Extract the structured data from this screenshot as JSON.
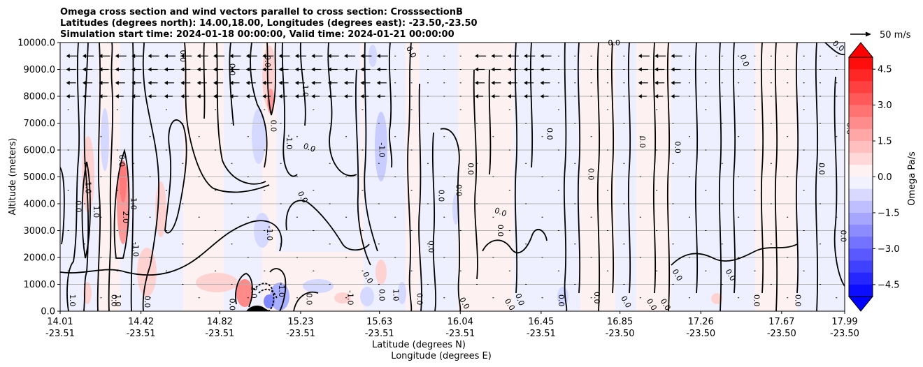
{
  "chart_data": {
    "type": "heatmap",
    "title_lines": [
      "Omega cross section and wind vectors parallel to cross section: CrosssectionB",
      "Latitudes (degrees north): 14.00,18.00, Longitudes (degrees east): -23.50,-23.50",
      "Simulation start time: 2024-01-18 00:00:00, Valid time: 2024-01-21 00:00:00"
    ],
    "ylabel": "Altitude (meters)",
    "xlabel_lines": [
      "Latitude (degrees N)",
      "Longitude (degrees E)"
    ],
    "ylim": [
      0,
      10000
    ],
    "y_ticks": [
      "0.0",
      "1000.0",
      "2000.0",
      "3000.0",
      "4000.0",
      "5000.0",
      "6000.0",
      "7000.0",
      "8000.0",
      "9000.0",
      "10000.0"
    ],
    "x_ticks": [
      {
        "lat": "14.01",
        "lon": "-23.51"
      },
      {
        "lat": "14.42",
        "lon": "-23.51"
      },
      {
        "lat": "14.82",
        "lon": "-23.51"
      },
      {
        "lat": "15.23",
        "lon": "-23.51"
      },
      {
        "lat": "15.63",
        "lon": "-23.51"
      },
      {
        "lat": "16.04",
        "lon": "-23.51"
      },
      {
        "lat": "16.45",
        "lon": "-23.51"
      },
      {
        "lat": "16.85",
        "lon": "-23.50"
      },
      {
        "lat": "17.26",
        "lon": "-23.50"
      },
      {
        "lat": "17.67",
        "lon": "-23.50"
      },
      {
        "lat": "17.99",
        "lon": "-23.50"
      }
    ],
    "grid": "horizontal",
    "colorbar": {
      "label": "Omega Pa/s",
      "range": [
        -5,
        5
      ],
      "ticks": [
        "4.5",
        "3.0",
        "1.5",
        "0.0",
        "−1.5",
        "−3.0",
        "−4.5"
      ],
      "extend": "both",
      "colors": {
        "positive_max": "#ff0000",
        "zero": "#ffffff",
        "negative_max": "#0000ff"
      }
    },
    "quiver_key": "50 m/s",
    "contour_labels": [
      {
        "text": "0.0",
        "lat": 14.62,
        "z": 9500,
        "rot": 90
      },
      {
        "text": "0.0",
        "lat": 14.87,
        "z": 9000,
        "rot": 90
      },
      {
        "text": "0.0",
        "lat": 15.05,
        "z": 9300,
        "rot": 90
      },
      {
        "text": "1.0",
        "lat": 15.24,
        "z": 8200,
        "rot": 90
      },
      {
        "text": "0.0",
        "lat": 15.08,
        "z": 6900,
        "rot": 90
      },
      {
        "text": "-1.0",
        "lat": 15.16,
        "z": 6300,
        "rot": 90
      },
      {
        "text": "0.0",
        "lat": 15.27,
        "z": 6000,
        "rot": 20
      },
      {
        "text": "0.0",
        "lat": 15.23,
        "z": 4200,
        "rot": 60
      },
      {
        "text": "-1.0",
        "lat": 15.06,
        "z": 2900,
        "rot": 90
      },
      {
        "text": "-1.0",
        "lat": 15.63,
        "z": 6000,
        "rot": 90
      },
      {
        "text": "0.0",
        "lat": 14.31,
        "z": 5600,
        "rot": 90
      },
      {
        "text": "1.0",
        "lat": 14.14,
        "z": 4600,
        "rot": 90
      },
      {
        "text": "0.0",
        "lat": 14.09,
        "z": 3900,
        "rot": 90
      },
      {
        "text": "1.0",
        "lat": 14.18,
        "z": 3700,
        "rot": 90
      },
      {
        "text": "2.0",
        "lat": 14.33,
        "z": 3500,
        "rot": 90
      },
      {
        "text": "1.0",
        "lat": 14.37,
        "z": 4000,
        "rot": 90
      },
      {
        "text": "-1.0",
        "lat": 14.38,
        "z": 2300,
        "rot": 90
      },
      {
        "text": "0.0",
        "lat": 15.78,
        "z": 9600,
        "rot": 60
      },
      {
        "text": "0.0",
        "lat": 15.93,
        "z": 4300,
        "rot": 90
      },
      {
        "text": "0.0",
        "lat": 16.02,
        "z": 4500,
        "rot": 90
      },
      {
        "text": "0.0",
        "lat": 16.08,
        "z": 5300,
        "rot": 90
      },
      {
        "text": "0.0",
        "lat": 16.24,
        "z": 3600,
        "rot": 20
      },
      {
        "text": "0.0",
        "lat": 16.23,
        "z": 3000,
        "rot": 90
      },
      {
        "text": "0.0",
        "lat": 15.88,
        "z": 2400,
        "rot": 90
      },
      {
        "text": "0.0",
        "lat": 16.48,
        "z": 6600,
        "rot": 90
      },
      {
        "text": "0.0",
        "lat": 16.69,
        "z": 5100,
        "rot": 90
      },
      {
        "text": "0.0",
        "lat": 16.82,
        "z": 9900,
        "rot": 0
      },
      {
        "text": "0.0",
        "lat": 16.95,
        "z": 6300,
        "rot": 90
      },
      {
        "text": "0.0",
        "lat": 17.13,
        "z": 6100,
        "rot": 90
      },
      {
        "text": "0.0",
        "lat": 17.47,
        "z": 9300,
        "rot": 70
      },
      {
        "text": "0.0",
        "lat": 17.86,
        "z": 5300,
        "rot": 90
      },
      {
        "text": "0.0",
        "lat": 17.95,
        "z": 9800,
        "rot": 40
      },
      {
        "text": "0.0",
        "lat": 18.0,
        "z": 6800,
        "rot": 90
      },
      {
        "text": "0.0",
        "lat": 17.97,
        "z": 2800,
        "rot": 90
      },
      {
        "text": "1.0",
        "lat": 14.06,
        "z": 400,
        "rot": 90
      },
      {
        "text": "0.0",
        "lat": 14.27,
        "z": 400,
        "rot": 90
      },
      {
        "text": "1.0",
        "lat": 14.29,
        "z": 400,
        "rot": 90
      },
      {
        "text": "0.0",
        "lat": 14.44,
        "z": 350,
        "rot": 90
      },
      {
        "text": "0.0",
        "lat": 14.87,
        "z": 250,
        "rot": 90
      },
      {
        "text": "2.0",
        "lat": 14.98,
        "z": 700,
        "rot": 90
      },
      {
        "text": "-1.0",
        "lat": 15.12,
        "z": 800,
        "rot": 90
      },
      {
        "text": "0.0",
        "lat": 15.26,
        "z": 450,
        "rot": 90
      },
      {
        "text": "-1.0",
        "lat": 15.47,
        "z": 500,
        "rot": 90
      },
      {
        "text": "0.0",
        "lat": 15.56,
        "z": 1200,
        "rot": 60
      },
      {
        "text": "0.0",
        "lat": 15.63,
        "z": 600,
        "rot": 90
      },
      {
        "text": "1.0",
        "lat": 15.7,
        "z": 600,
        "rot": 90
      },
      {
        "text": "0.0",
        "lat": 15.82,
        "z": 450,
        "rot": 90
      },
      {
        "text": "0.0",
        "lat": 16.05,
        "z": 250,
        "rot": 60
      },
      {
        "text": "0.0",
        "lat": 16.28,
        "z": 200,
        "rot": 60
      },
      {
        "text": "0.0",
        "lat": 16.33,
        "z": 400,
        "rot": 70
      },
      {
        "text": "0.0",
        "lat": 16.54,
        "z": 400,
        "rot": 90
      },
      {
        "text": "0.0",
        "lat": 16.72,
        "z": 500,
        "rot": 90
      },
      {
        "text": "0.0",
        "lat": 16.87,
        "z": 300,
        "rot": 60
      },
      {
        "text": "0.0",
        "lat": 17.0,
        "z": 200,
        "rot": 60
      },
      {
        "text": "0.0",
        "lat": 17.07,
        "z": 200,
        "rot": 60
      },
      {
        "text": "0.0",
        "lat": 17.13,
        "z": 1300,
        "rot": 60
      },
      {
        "text": "0.0",
        "lat": 17.4,
        "z": 1300,
        "rot": 60
      },
      {
        "text": "0.0",
        "lat": 17.53,
        "z": 400,
        "rot": 90
      },
      {
        "text": "0.0",
        "lat": 17.74,
        "z": 400,
        "rot": 90
      }
    ]
  }
}
